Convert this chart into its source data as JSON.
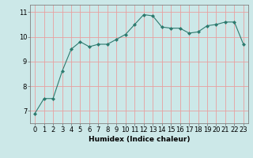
{
  "x": [
    0,
    1,
    2,
    3,
    4,
    5,
    6,
    7,
    8,
    9,
    10,
    11,
    12,
    13,
    14,
    15,
    16,
    17,
    18,
    19,
    20,
    21,
    22,
    23
  ],
  "y": [
    6.9,
    7.5,
    7.5,
    8.6,
    9.5,
    9.8,
    9.6,
    9.7,
    9.7,
    9.9,
    10.1,
    10.5,
    10.9,
    10.85,
    10.4,
    10.35,
    10.35,
    10.15,
    10.2,
    10.45,
    10.5,
    10.6,
    10.6,
    9.7
  ],
  "line_color": "#2d7a6e",
  "marker": "D",
  "marker_size": 2,
  "bg_color": "#cce8e8",
  "grid_color": "#e8a0a0",
  "xlabel": "Humidex (Indice chaleur)",
  "ylim": [
    6.5,
    11.3
  ],
  "xlim": [
    -0.5,
    23.5
  ],
  "yticks": [
    7,
    8,
    9,
    10,
    11
  ],
  "xticks": [
    0,
    1,
    2,
    3,
    4,
    5,
    6,
    7,
    8,
    9,
    10,
    11,
    12,
    13,
    14,
    15,
    16,
    17,
    18,
    19,
    20,
    21,
    22,
    23
  ],
  "xlabel_fontsize": 6.5,
  "tick_fontsize": 6,
  "figwidth": 3.2,
  "figheight": 2.0,
  "dpi": 100
}
